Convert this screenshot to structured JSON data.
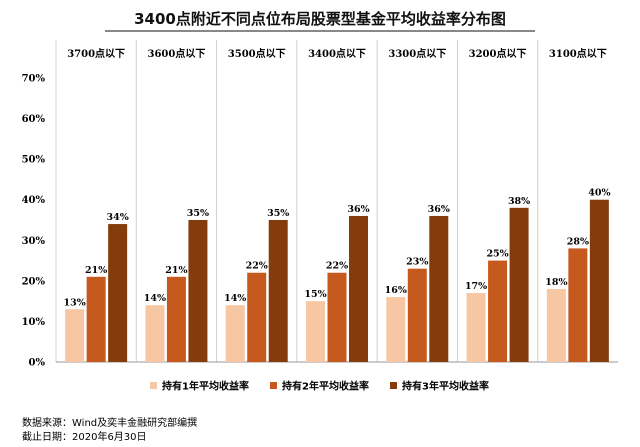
{
  "chart_data": {
    "type": "bar",
    "title": "3400点附近不同点位布局股票型基金平均收益率分布图",
    "categories": [
      "3700点以下",
      "3600点以下",
      "3500点以下",
      "3400点以下",
      "3300点以下",
      "3200点以下",
      "3100点以下"
    ],
    "series": [
      {
        "name": "持有1年平均收益率",
        "color": "#f7c6a3",
        "values": [
          13,
          14,
          14,
          15,
          16,
          17,
          18
        ],
        "labels": [
          "13%",
          "14%",
          "14%",
          "15%",
          "16%",
          "17%",
          "18%"
        ]
      },
      {
        "name": "持有2年平均收益率",
        "color": "#c65a1e",
        "values": [
          21,
          21,
          22,
          22,
          23,
          25,
          28
        ],
        "labels": [
          "21%",
          "21%",
          "22%",
          "22%",
          "23%",
          "25%",
          "28%"
        ]
      },
      {
        "name": "持有3年平均收益率",
        "color": "#843c0c",
        "values": [
          34,
          35,
          35,
          36,
          36,
          38,
          40
        ],
        "labels": [
          "34%",
          "35%",
          "35%",
          "36%",
          "36%",
          "38%",
          "40%"
        ]
      }
    ],
    "ylim": [
      0,
      70
    ],
    "yticks": [
      0,
      10,
      20,
      30,
      40,
      50,
      60,
      70
    ],
    "ytick_labels": [
      "0%",
      "10%",
      "20%",
      "30%",
      "40%",
      "50%",
      "60%",
      "70%"
    ],
    "grid": false,
    "legend": "bottom"
  },
  "notes": {
    "source": "数据来源：Wind及奕丰金融研究部编撰",
    "date": "截止日期：2020年6月30日"
  }
}
